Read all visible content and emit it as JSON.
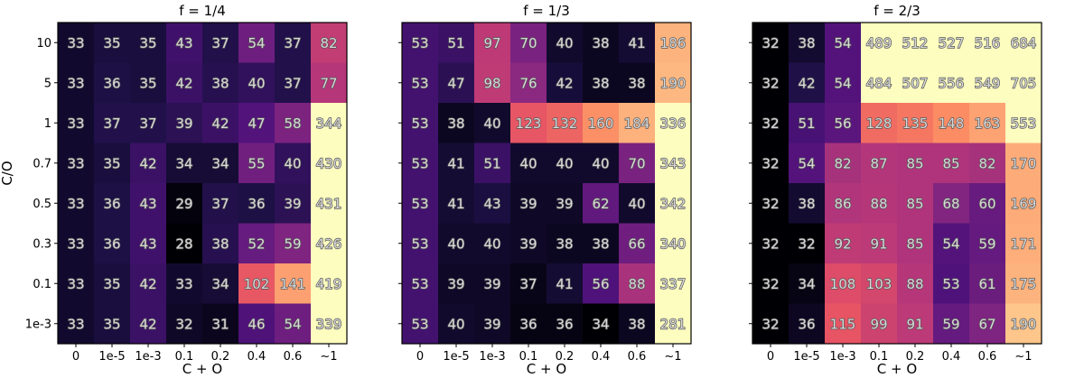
{
  "chart_data": {
    "type": "heatmap",
    "xlabel": "C + O",
    "ylabel": "C/O",
    "x_categories": [
      "0",
      "1e-5",
      "1e-3",
      "0.1",
      "0.2",
      "0.4",
      "0.6",
      "~1"
    ],
    "y_categories": [
      "10",
      "5",
      "1",
      "0.7",
      "0.5",
      "0.3",
      "0.1",
      "1e-3"
    ],
    "colormap": "magma",
    "panels": [
      {
        "title": "f = 1/4",
        "values": [
          [
            33,
            35,
            35,
            43,
            37,
            54,
            37,
            82
          ],
          [
            33,
            36,
            35,
            42,
            38,
            40,
            37,
            77
          ],
          [
            33,
            37,
            37,
            39,
            42,
            47,
            58,
            344
          ],
          [
            33,
            35,
            42,
            34,
            34,
            55,
            40,
            430
          ],
          [
            33,
            36,
            43,
            29,
            37,
            36,
            39,
            431
          ],
          [
            33,
            36,
            43,
            28,
            38,
            52,
            59,
            426
          ],
          [
            33,
            35,
            42,
            33,
            34,
            102,
            141,
            419
          ],
          [
            33,
            35,
            42,
            32,
            31,
            46,
            54,
            339
          ]
        ]
      },
      {
        "title": "f = 1/3",
        "values": [
          [
            53,
            51,
            97,
            70,
            40,
            38,
            41,
            186
          ],
          [
            53,
            47,
            98,
            76,
            42,
            38,
            38,
            190
          ],
          [
            53,
            38,
            40,
            123,
            132,
            160,
            184,
            336
          ],
          [
            53,
            41,
            51,
            40,
            40,
            40,
            70,
            343
          ],
          [
            53,
            41,
            43,
            39,
            39,
            62,
            40,
            342
          ],
          [
            53,
            40,
            40,
            39,
            38,
            38,
            66,
            340
          ],
          [
            53,
            39,
            39,
            37,
            41,
            56,
            88,
            337
          ],
          [
            53,
            40,
            39,
            36,
            36,
            34,
            38,
            281
          ]
        ]
      },
      {
        "title": "f = 2/3",
        "values": [
          [
            32,
            38,
            54,
            489,
            512,
            527,
            516,
            684
          ],
          [
            32,
            42,
            54,
            484,
            507,
            556,
            549,
            705
          ],
          [
            32,
            51,
            56,
            128,
            135,
            148,
            163,
            553
          ],
          [
            32,
            54,
            82,
            87,
            85,
            85,
            82,
            170
          ],
          [
            32,
            38,
            86,
            88,
            85,
            68,
            60,
            169
          ],
          [
            32,
            32,
            92,
            91,
            85,
            54,
            59,
            171
          ],
          [
            32,
            34,
            108,
            103,
            88,
            53,
            61,
            175
          ],
          [
            32,
            36,
            115,
            99,
            91,
            59,
            67,
            190
          ]
        ]
      }
    ]
  }
}
